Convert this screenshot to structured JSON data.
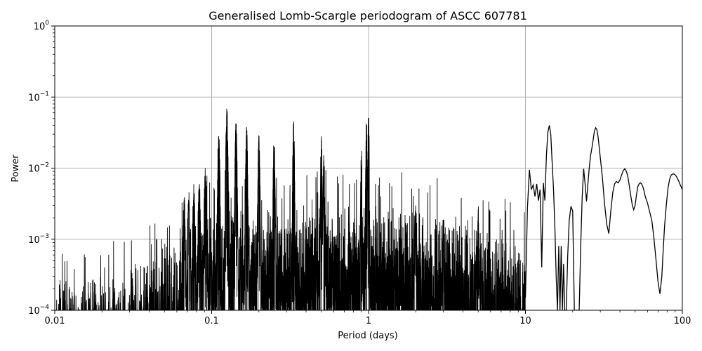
{
  "chart_data": {
    "type": "line",
    "title": "Generalised Lomb-Scargle periodogram of ASCC 607781",
    "xlabel": "Period (days)",
    "ylabel": "Power",
    "xscale": "log",
    "yscale": "log",
    "xlim": [
      0.01,
      100
    ],
    "ylim": [
      0.0001,
      1
    ],
    "grid": true,
    "line_color": "#000000",
    "x_ticks": [
      {
        "value": 0.01,
        "label": "0.01"
      },
      {
        "value": 0.1,
        "label": "0.1"
      },
      {
        "value": 1,
        "label": "1"
      },
      {
        "value": 10,
        "label": "10"
      },
      {
        "value": 100,
        "label": "100"
      }
    ],
    "y_ticks": [
      {
        "value": 0.0001,
        "base": "10",
        "exp": "−4"
      },
      {
        "value": 0.001,
        "base": "10",
        "exp": "−3"
      },
      {
        "value": 0.01,
        "base": "10",
        "exp": "−2"
      },
      {
        "value": 0.1,
        "base": "10",
        "exp": "−1"
      },
      {
        "value": 1,
        "base": "10",
        "exp": "0"
      }
    ],
    "series": [
      {
        "x": [
          10.0,
          10.3,
          10.6,
          10.9,
          11.2,
          11.5,
          11.8,
          12.1,
          12.4,
          12.7,
          13.0,
          13.3,
          13.6,
          13.9,
          14.2,
          14.5,
          14.8,
          15.1,
          15.4,
          15.7,
          16.0,
          16.3,
          16.6,
          16.9,
          17.2,
          17.5,
          17.8,
          18.2,
          18.6,
          19.0,
          19.5,
          20.0,
          20.5,
          21.0,
          21.5,
          22.0,
          22.5,
          23.0,
          23.5,
          24.0,
          24.5,
          25.0,
          25.5,
          26.0,
          26.5,
          27.0,
          27.5,
          28.0,
          28.5,
          29.0,
          29.5,
          30.0,
          30.5,
          31.0,
          31.5,
          32.0,
          33.0,
          34.0,
          35.0,
          36.0,
          37.0,
          38.0,
          39.0,
          40.0,
          41.0,
          42.0,
          43.0,
          44.0,
          45.0,
          46.0,
          47.0,
          48.0,
          49.0,
          50.0,
          51.0,
          52.0,
          53.0,
          54.0,
          55.0,
          56.0,
          57.0,
          58.0,
          60.0,
          62.0,
          64.0,
          66.0,
          68.0,
          70.0,
          72.0,
          74.0,
          75.5,
          77.0,
          79.0,
          81.0,
          83.0,
          85.0,
          87.0,
          89.0,
          91.0,
          93.0,
          95.0,
          97.0,
          100.0
        ],
        "y": [
          0.00015,
          0.0028,
          0.0095,
          0.005,
          0.0058,
          0.004,
          0.006,
          0.0035,
          0.005,
          0.0004,
          0.0062,
          0.0035,
          0.015,
          0.032,
          0.04,
          0.03,
          0.012,
          0.005,
          0.0015,
          0.0003,
          0.0001,
          0.0008,
          0.0001,
          0.0008,
          0.0001,
          0.00045,
          0.0001,
          0.0001,
          0.0006,
          0.0018,
          0.0029,
          0.0025,
          0.0001,
          0.0001,
          0.0001,
          0.0001,
          0.0008,
          0.004,
          0.0098,
          0.006,
          0.0034,
          0.006,
          0.01,
          0.015,
          0.019,
          0.025,
          0.033,
          0.037,
          0.035,
          0.028,
          0.02,
          0.014,
          0.01,
          0.007,
          0.0045,
          0.003,
          0.0016,
          0.0012,
          0.0025,
          0.0045,
          0.006,
          0.0065,
          0.0062,
          0.0068,
          0.008,
          0.0092,
          0.0098,
          0.009,
          0.0075,
          0.0055,
          0.004,
          0.003,
          0.0026,
          0.003,
          0.0042,
          0.0055,
          0.006,
          0.0062,
          0.006,
          0.0055,
          0.0048,
          0.004,
          0.0032,
          0.0024,
          0.0018,
          0.001,
          0.0005,
          0.00025,
          0.00017,
          0.0003,
          0.0007,
          0.0015,
          0.003,
          0.0052,
          0.007,
          0.008,
          0.0083,
          0.0082,
          0.0078,
          0.0072,
          0.0065,
          0.0058,
          0.005
        ]
      }
    ]
  }
}
